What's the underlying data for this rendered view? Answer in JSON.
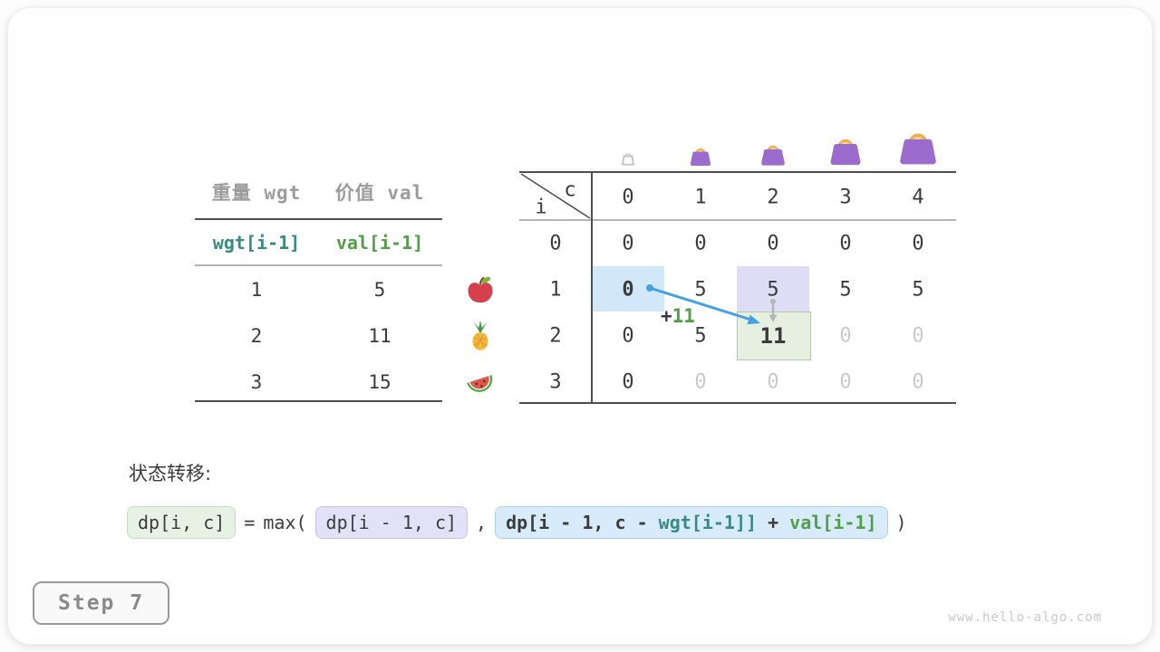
{
  "items_table": {
    "headers": [
      {
        "text": "重量 wgt"
      },
      {
        "text": "价值 val"
      }
    ],
    "index_row": [
      {
        "text": "wgt[i-1]",
        "color": "teal"
      },
      {
        "text": "val[i-1]",
        "color": "green"
      }
    ],
    "rows": [
      {
        "wgt": "1",
        "val": "5",
        "icon": "apple"
      },
      {
        "wgt": "2",
        "val": "11",
        "icon": "pineapple"
      },
      {
        "wgt": "3",
        "val": "15",
        "icon": "watermelon"
      }
    ]
  },
  "dp_table": {
    "corner_col_label": "c",
    "corner_row_label": "i",
    "col_headers": [
      "0",
      "1",
      "2",
      "3",
      "4"
    ],
    "row_headers": [
      "0",
      "1",
      "2",
      "3"
    ],
    "cells": [
      [
        "0",
        "0",
        "0",
        "0",
        "0"
      ],
      [
        "0",
        "5",
        "5",
        "5",
        "5"
      ],
      [
        "0",
        "5",
        "11",
        "0",
        "0"
      ],
      [
        "0",
        "0",
        "0",
        "0",
        "0"
      ]
    ],
    "faded_cells": [
      [
        2,
        3
      ],
      [
        2,
        4
      ],
      [
        3,
        1
      ],
      [
        3,
        2
      ],
      [
        3,
        3
      ],
      [
        3,
        4
      ]
    ],
    "bold_cells": [
      [
        1,
        0
      ]
    ],
    "big_cells": [
      [
        2,
        2
      ]
    ],
    "highlights": [
      {
        "row": 1,
        "col": 0,
        "kind": "blue"
      },
      {
        "row": 1,
        "col": 2,
        "kind": "lavender"
      },
      {
        "row": 2,
        "col": 2,
        "kind": "green"
      }
    ],
    "bag_icons": [
      "bag-empty-icon",
      "bag-icon",
      "bag-icon",
      "bag-icon",
      "bag-icon"
    ]
  },
  "annotation": {
    "plus_sign": "+",
    "value": "11"
  },
  "transition": {
    "label": "状态转移:",
    "lhs": "dp[i, c]",
    "equals": "=",
    "max_open": "max(",
    "arg1": "dp[i - 1, c]",
    "comma": ",",
    "arg2_pre": "dp[i - 1, c - ",
    "arg2_wgt": "wgt[i-1]]",
    "arg2_plus": " + ",
    "arg2_val": "val[i-1]",
    "close_paren": ")"
  },
  "footer": {
    "step_label": "Step 7",
    "watermark": "www.hello-algo.com"
  },
  "colors": {
    "dark": "#3b3b3b",
    "gray_text": "#9c9c9c",
    "faded": "#c9c9c9",
    "teal": "#3a8b7f",
    "green": "#539e48",
    "blue_arrow": "#45a1e6",
    "gray_arrow": "#b5b5b5",
    "cell_blue": "#d2e8f8",
    "cell_lavender": "#dfddf5",
    "cell_green": "#e6f0e1",
    "cell_green_border": "#b2c9aa",
    "box_green_bg": "#e8f2e4",
    "box_green_bd": "#c5dcbc",
    "box_lav_bg": "#e3e1f7",
    "box_lav_bd": "#c4c2ea",
    "box_blue_bg": "#d8ebfa",
    "box_blue_bd": "#abd0ee",
    "line_dark": "#4e4e4e",
    "line_light": "#9b9b9b",
    "watermark": "#c8c8c8"
  }
}
